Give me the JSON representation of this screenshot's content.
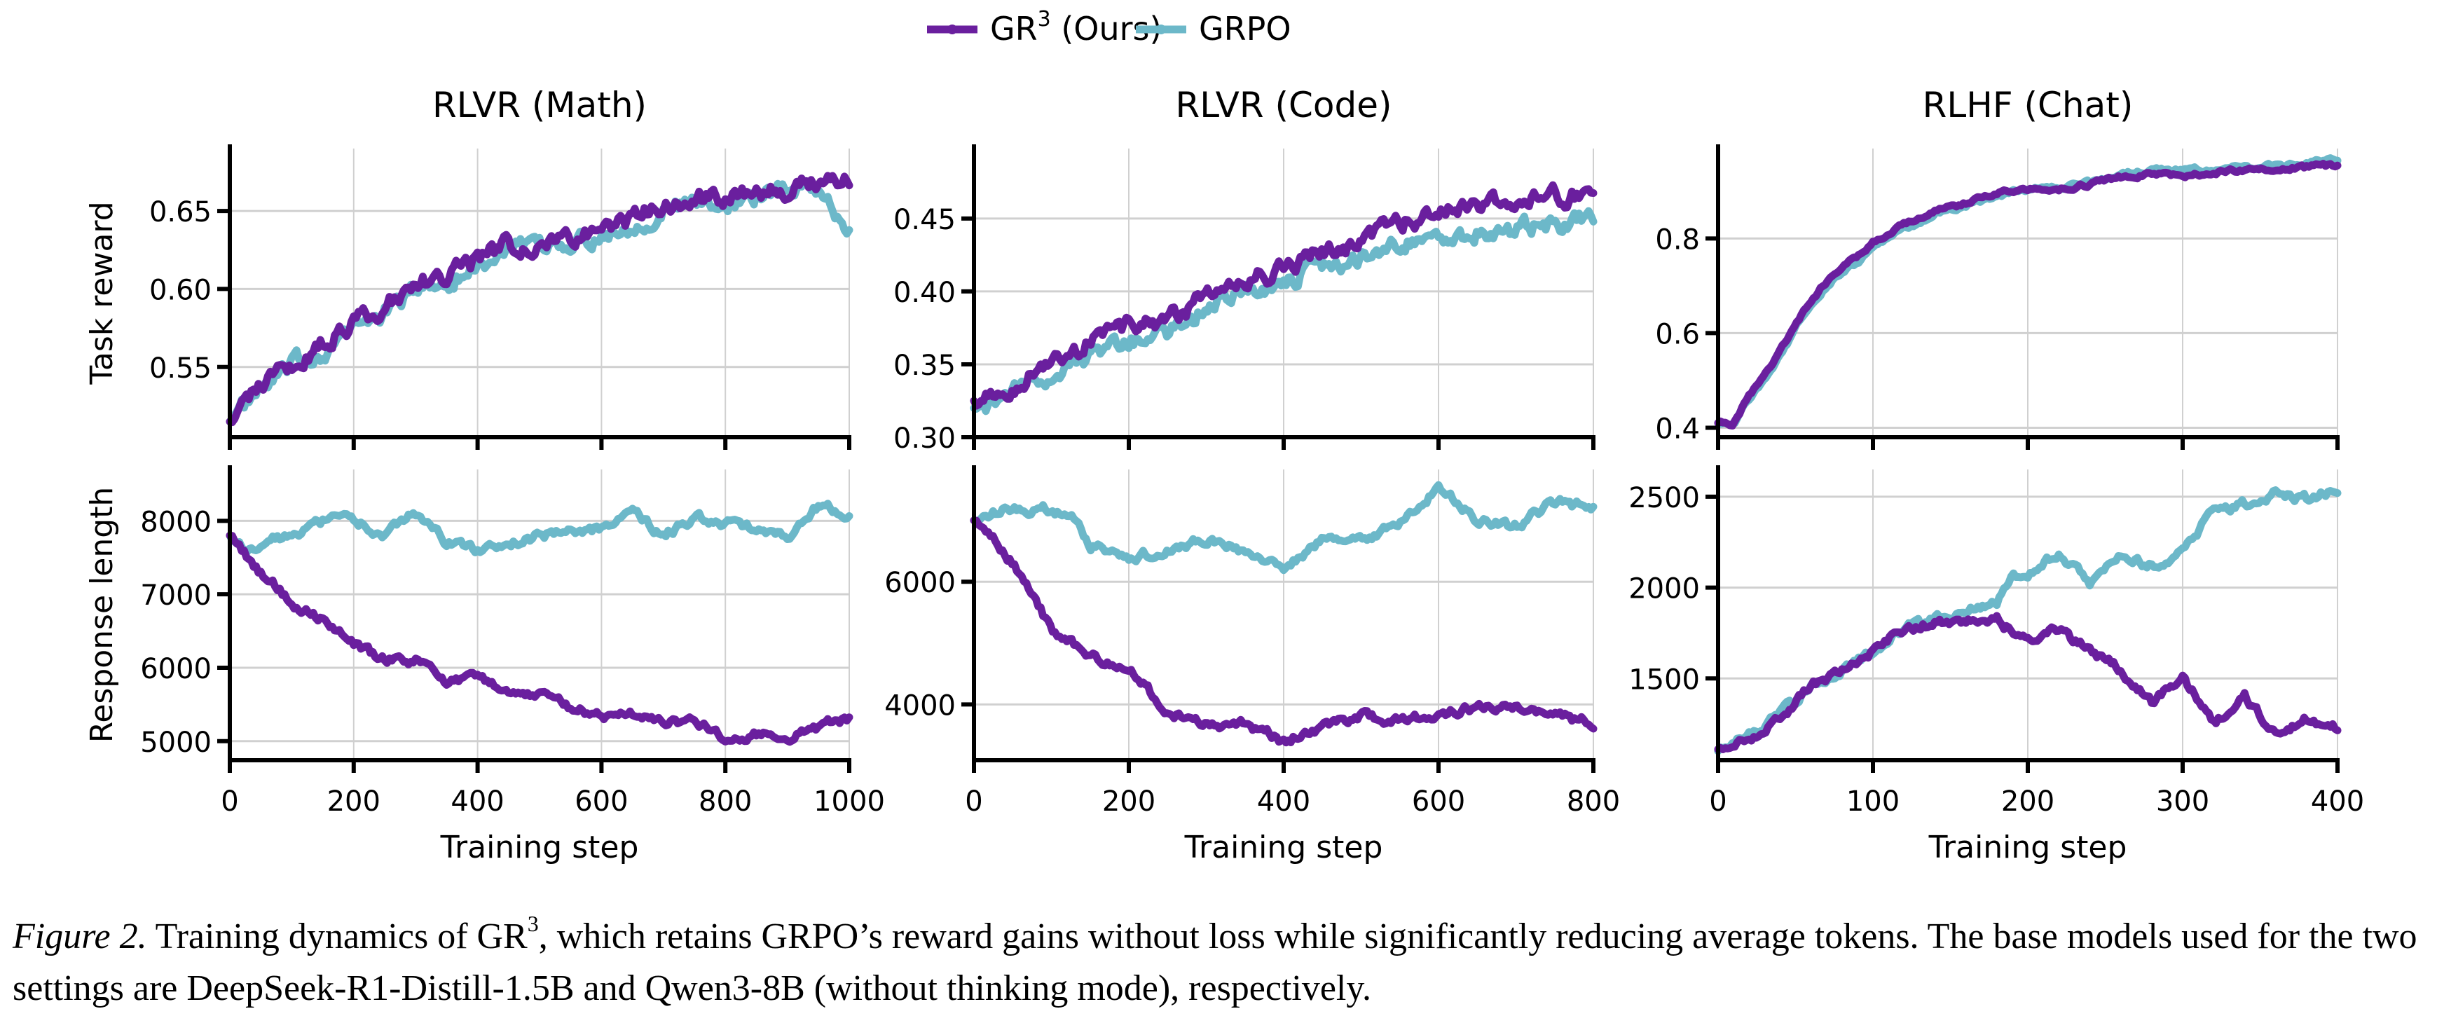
{
  "legend": {
    "position": "top-center",
    "items": [
      {
        "label": "GR",
        "sup": "3",
        "suffix": " (Ours)",
        "color": "#6a1f9e"
      },
      {
        "label": "GRPO",
        "sup": "",
        "suffix": "",
        "color": "#6cb8c9"
      }
    ]
  },
  "caption": {
    "label": "Figure 2.",
    "text_before_sup": " Training dynamics of GR",
    "sup": "3",
    "text_after_sup": ", which retains GRPO’s reward gains without loss while significantly reducing average tokens. The base models used for the two settings are DeepSeek-R1-Distill-1.5B and Qwen3-8B (without thinking mode), respectively."
  },
  "chart_data": [
    {
      "type": "line",
      "panel": "top-left",
      "title": "RLVR (Math)",
      "xlabel": "",
      "ylabel": "Task reward",
      "xlim": [
        0,
        1000
      ],
      "ylim": [
        0.505,
        0.69
      ],
      "xticks": [
        0,
        200,
        400,
        600,
        800,
        1000
      ],
      "yticks": [
        0.55,
        0.6,
        0.65
      ],
      "ytick_labels": [
        "0.55",
        "0.60",
        "0.65"
      ],
      "show_xtick_labels": false,
      "grid": true,
      "x": [
        0,
        50,
        100,
        150,
        200,
        250,
        300,
        350,
        400,
        450,
        500,
        550,
        600,
        650,
        700,
        750,
        800,
        850,
        900,
        950,
        1000
      ],
      "series": [
        {
          "name": "GRPO",
          "values": [
            0.515,
            0.535,
            0.55,
            0.56,
            0.575,
            0.585,
            0.6,
            0.605,
            0.615,
            0.625,
            0.625,
            0.63,
            0.635,
            0.64,
            0.65,
            0.655,
            0.655,
            0.66,
            0.665,
            0.665,
            0.635
          ]
        },
        {
          "name": "GR3 (Ours)",
          "values": [
            0.515,
            0.54,
            0.55,
            0.565,
            0.578,
            0.59,
            0.603,
            0.607,
            0.62,
            0.628,
            0.63,
            0.633,
            0.64,
            0.645,
            0.655,
            0.658,
            0.658,
            0.662,
            0.665,
            0.668,
            0.67
          ]
        }
      ]
    },
    {
      "type": "line",
      "panel": "top-center",
      "title": "RLVR (Code)",
      "xlabel": "",
      "ylabel": "",
      "xlim": [
        0,
        800
      ],
      "ylim": [
        0.3,
        0.498
      ],
      "xticks": [
        0,
        200,
        400,
        600,
        800
      ],
      "yticks": [
        0.3,
        0.35,
        0.4,
        0.45
      ],
      "ytick_labels": [
        "0.30",
        "0.35",
        "0.40",
        "0.45"
      ],
      "show_xtick_labels": false,
      "grid": true,
      "x": [
        0,
        40,
        80,
        120,
        160,
        200,
        240,
        280,
        320,
        360,
        400,
        440,
        480,
        520,
        560,
        600,
        640,
        680,
        720,
        760,
        800
      ],
      "series": [
        {
          "name": "GRPO",
          "values": [
            0.32,
            0.325,
            0.34,
            0.35,
            0.36,
            0.365,
            0.37,
            0.38,
            0.395,
            0.4,
            0.405,
            0.415,
            0.42,
            0.43,
            0.435,
            0.435,
            0.44,
            0.44,
            0.445,
            0.445,
            0.45
          ]
        },
        {
          "name": "GR3 (Ours)",
          "values": [
            0.325,
            0.33,
            0.345,
            0.355,
            0.37,
            0.375,
            0.38,
            0.39,
            0.405,
            0.41,
            0.415,
            0.425,
            0.43,
            0.44,
            0.45,
            0.452,
            0.46,
            0.463,
            0.465,
            0.465,
            0.47
          ]
        }
      ]
    },
    {
      "type": "line",
      "panel": "top-right",
      "title": "RLHF (Chat)",
      "xlabel": "",
      "ylabel": "",
      "xlim": [
        0,
        400
      ],
      "ylim": [
        0.38,
        0.99
      ],
      "xticks": [
        0,
        100,
        200,
        300,
        400
      ],
      "yticks": [
        0.4,
        0.6,
        0.8
      ],
      "ytick_labels": [
        "0.4",
        "0.6",
        "0.8"
      ],
      "show_xtick_labels": false,
      "grid": true,
      "x": [
        0,
        10,
        20,
        30,
        40,
        50,
        60,
        70,
        80,
        90,
        100,
        120,
        140,
        160,
        180,
        200,
        220,
        240,
        260,
        280,
        300,
        320,
        340,
        360,
        380,
        400
      ],
      "series": [
        {
          "name": "GRPO",
          "values": [
            0.41,
            0.41,
            0.46,
            0.5,
            0.55,
            0.61,
            0.66,
            0.7,
            0.73,
            0.75,
            0.78,
            0.82,
            0.85,
            0.87,
            0.89,
            0.905,
            0.91,
            0.92,
            0.935,
            0.945,
            0.945,
            0.945,
            0.95,
            0.955,
            0.96,
            0.965
          ]
        },
        {
          "name": "GR3 (Ours)",
          "values": [
            0.41,
            0.41,
            0.47,
            0.51,
            0.56,
            0.62,
            0.67,
            0.71,
            0.74,
            0.76,
            0.79,
            0.83,
            0.855,
            0.875,
            0.895,
            0.905,
            0.905,
            0.915,
            0.93,
            0.935,
            0.93,
            0.94,
            0.945,
            0.945,
            0.95,
            0.955
          ]
        }
      ]
    },
    {
      "type": "line",
      "panel": "bottom-left",
      "title": "",
      "xlabel": "Training step",
      "ylabel": "Response length",
      "xlim": [
        0,
        1000
      ],
      "ylim": [
        4740,
        8700
      ],
      "xticks": [
        0,
        200,
        400,
        600,
        800,
        1000
      ],
      "yticks": [
        5000,
        6000,
        7000,
        8000
      ],
      "ytick_labels": [
        "5000",
        "6000",
        "7000",
        "8000"
      ],
      "xtick_labels": [
        "0",
        "200",
        "400",
        "600",
        "800",
        "1000"
      ],
      "show_xtick_labels": true,
      "grid": true,
      "x": [
        0,
        25,
        50,
        75,
        100,
        125,
        150,
        200,
        250,
        300,
        350,
        400,
        450,
        500,
        550,
        600,
        650,
        700,
        750,
        800,
        850,
        900,
        950,
        1000
      ],
      "series": [
        {
          "name": "GRPO",
          "values": [
            7800,
            7600,
            7700,
            7750,
            7850,
            7900,
            8000,
            8000,
            7800,
            8100,
            7700,
            7600,
            7700,
            7800,
            7850,
            7900,
            8100,
            7800,
            8050,
            7950,
            7900,
            7750,
            8200,
            8100
          ]
        },
        {
          "name": "GR3 (Ours)",
          "values": [
            7800,
            7550,
            7300,
            7100,
            6900,
            6750,
            6650,
            6300,
            6100,
            6100,
            5800,
            5850,
            5700,
            5600,
            5450,
            5350,
            5350,
            5250,
            5250,
            5050,
            5100,
            5050,
            5200,
            5300
          ]
        }
      ]
    },
    {
      "type": "line",
      "panel": "bottom-center",
      "title": "",
      "xlabel": "Training step",
      "ylabel": "",
      "xlim": [
        0,
        800
      ],
      "ylim": [
        3090,
        7830
      ],
      "xticks": [
        0,
        200,
        400,
        600,
        800
      ],
      "yticks": [
        4000,
        6000
      ],
      "ytick_labels": [
        "4000",
        "6000"
      ],
      "xtick_labels": [
        "0",
        "200",
        "400",
        "600",
        "800"
      ],
      "show_xtick_labels": true,
      "grid": true,
      "x": [
        0,
        25,
        50,
        75,
        100,
        125,
        150,
        200,
        250,
        300,
        350,
        400,
        450,
        500,
        550,
        600,
        650,
        700,
        750,
        800
      ],
      "series": [
        {
          "name": "GRPO",
          "values": [
            7000,
            7150,
            7200,
            7150,
            7200,
            7050,
            6600,
            6400,
            6500,
            6700,
            6500,
            6200,
            6700,
            6650,
            7000,
            7550,
            7000,
            6900,
            7300,
            7200
          ]
        },
        {
          "name": "GR3 (Ours)",
          "values": [
            7000,
            6750,
            6300,
            5800,
            5200,
            5050,
            4800,
            4550,
            3900,
            3650,
            3700,
            3400,
            3650,
            3800,
            3750,
            3850,
            3950,
            3950,
            3800,
            3700
          ]
        }
      ]
    },
    {
      "type": "line",
      "panel": "bottom-right",
      "title": "",
      "xlabel": "Training step",
      "ylabel": "",
      "xlim": [
        0,
        400
      ],
      "ylim": [
        1050,
        2650
      ],
      "xticks": [
        0,
        100,
        200,
        300,
        400
      ],
      "yticks": [
        1500,
        2000,
        2500
      ],
      "ytick_labels": [
        "1500",
        "2000",
        "2500"
      ],
      "xtick_labels": [
        "0",
        "100",
        "200",
        "300",
        "400"
      ],
      "show_xtick_labels": true,
      "grid": true,
      "x": [
        0,
        20,
        40,
        60,
        80,
        100,
        120,
        140,
        160,
        180,
        190,
        200,
        220,
        240,
        260,
        280,
        300,
        320,
        340,
        360,
        380,
        400
      ],
      "series": [
        {
          "name": "GRPO",
          "values": [
            1100,
            1180,
            1300,
            1450,
            1550,
            1650,
            1780,
            1820,
            1880,
            1920,
            2050,
            2080,
            2200,
            2020,
            2180,
            2120,
            2200,
            2420,
            2460,
            2520,
            2490,
            2550
          ]
        },
        {
          "name": "GR3 (Ours)",
          "values": [
            1110,
            1170,
            1290,
            1460,
            1540,
            1640,
            1780,
            1800,
            1820,
            1830,
            1760,
            1720,
            1760,
            1650,
            1550,
            1370,
            1510,
            1250,
            1400,
            1200,
            1280,
            1230
          ]
        }
      ]
    }
  ]
}
